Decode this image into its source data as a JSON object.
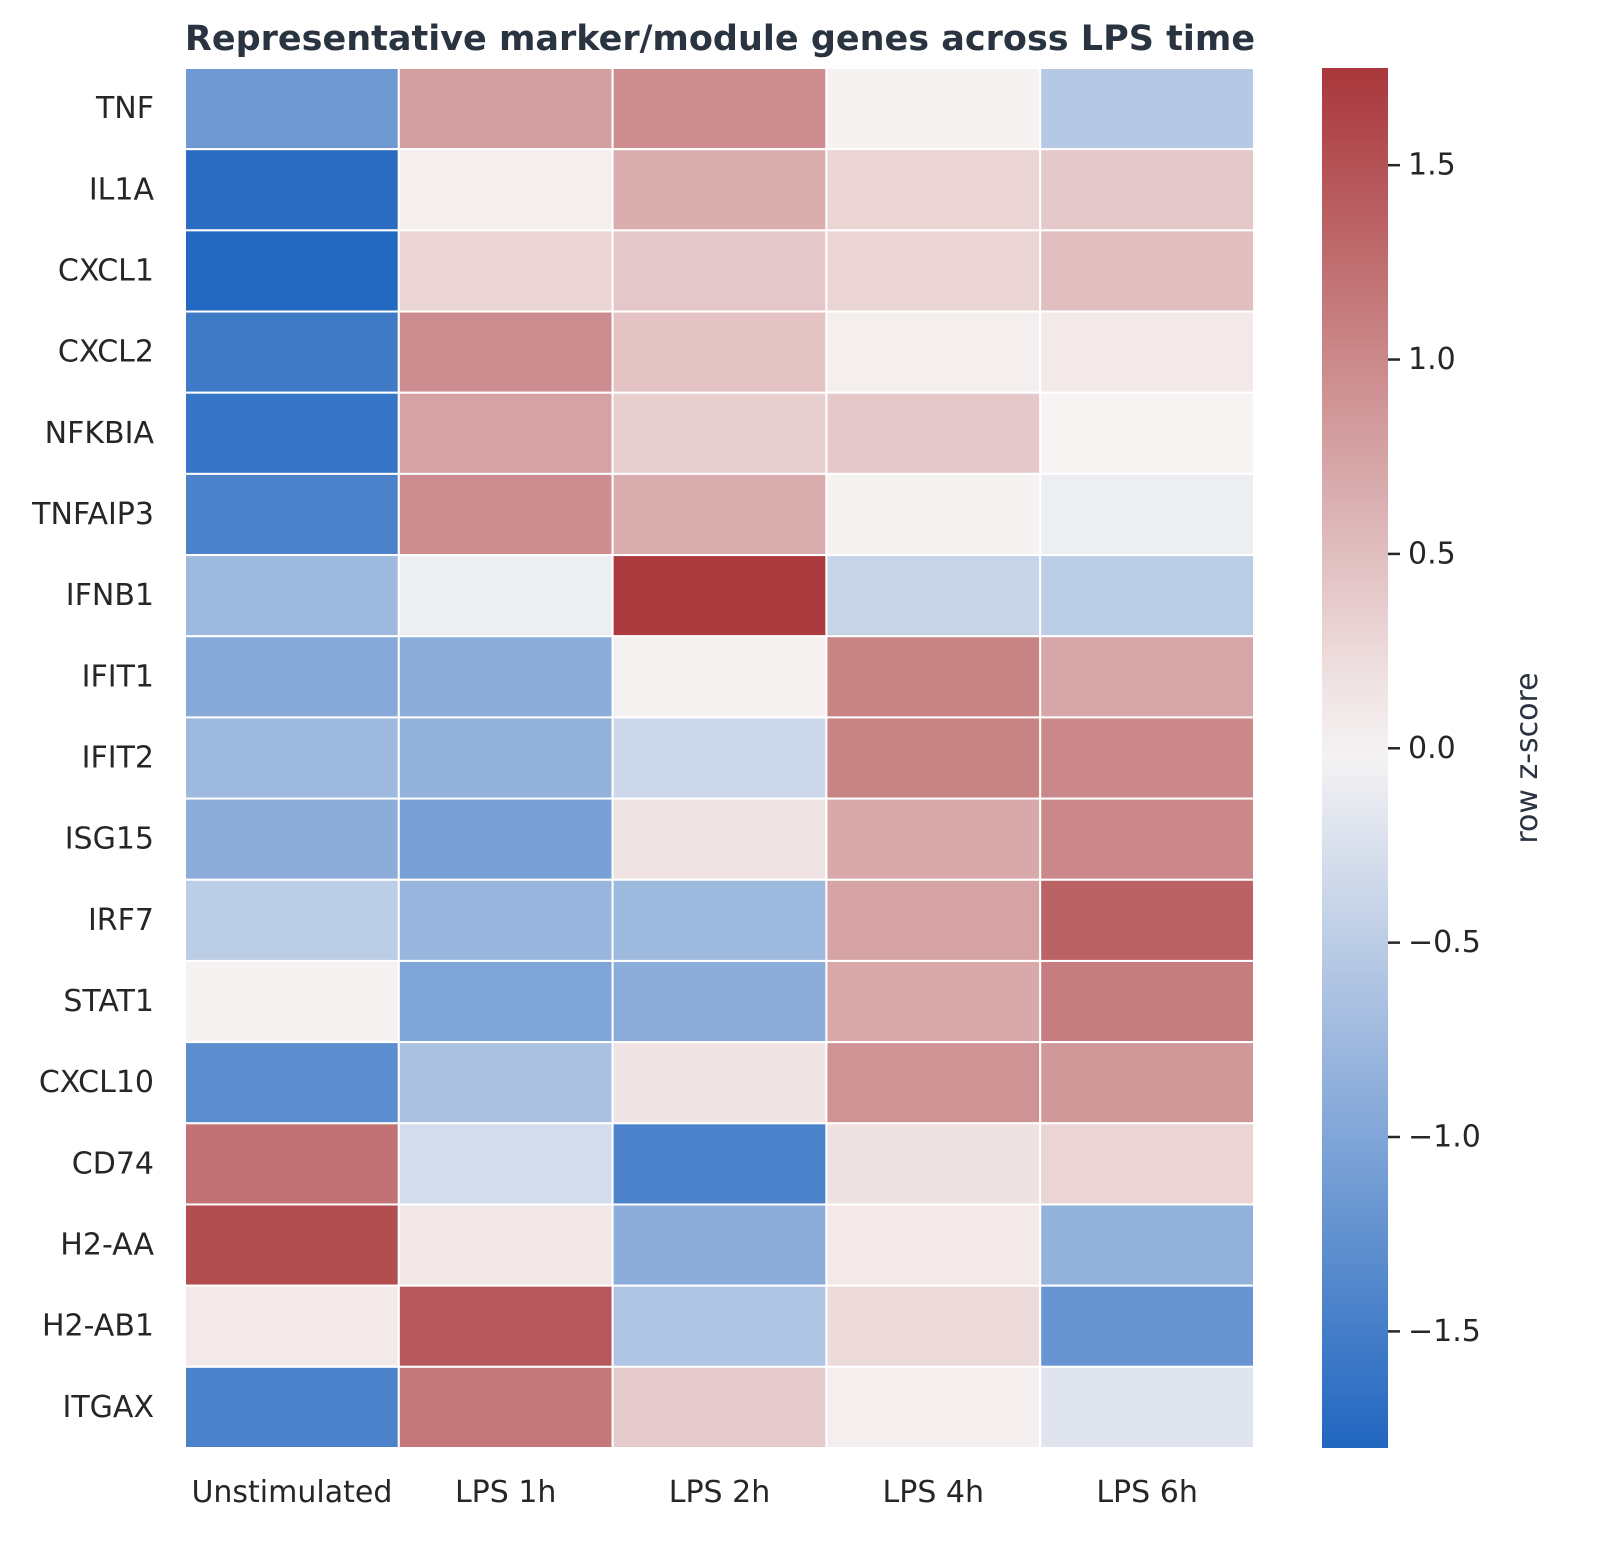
{
  "chart_data": {
    "type": "heatmap",
    "title": "Representative marker/module genes across LPS time",
    "columns": [
      "Unstimulated",
      "LPS 1h",
      "LPS 2h",
      "LPS 4h",
      "LPS 6h"
    ],
    "rows": [
      "TNF",
      "IL1A",
      "CXCL1",
      "CXCL2",
      "NFKBIA",
      "TNFAIP3",
      "IFNB1",
      "IFIT1",
      "IFIT2",
      "ISG15",
      "IRF7",
      "STAT1",
      "CXCL10",
      "CD74",
      "H2-AA",
      "H2-AB1",
      "ITGAX"
    ],
    "values": [
      [
        -1.15,
        0.8,
        0.95,
        0.02,
        -0.55
      ],
      [
        -1.72,
        0.06,
        0.65,
        0.3,
        0.4
      ],
      [
        -1.78,
        0.3,
        0.42,
        0.3,
        0.5
      ],
      [
        -1.55,
        0.95,
        0.45,
        0.06,
        0.1
      ],
      [
        -1.62,
        0.75,
        0.35,
        0.4,
        0.01
      ],
      [
        -1.45,
        0.95,
        0.65,
        0.02,
        -0.08
      ],
      [
        -0.75,
        -0.08,
        1.72,
        -0.4,
        -0.5
      ],
      [
        -0.95,
        -0.9,
        0.03,
        1.05,
        0.72
      ],
      [
        -0.75,
        -0.85,
        -0.35,
        1.05,
        1.0
      ],
      [
        -0.9,
        -1.05,
        0.16,
        0.7,
        1.0
      ],
      [
        -0.5,
        -0.8,
        -0.75,
        0.75,
        1.35
      ],
      [
        0.02,
        -1.0,
        -0.9,
        0.7,
        1.1
      ],
      [
        -1.3,
        -0.65,
        0.15,
        0.9,
        0.85
      ],
      [
        1.2,
        -0.3,
        -1.45,
        0.17,
        0.3
      ],
      [
        1.55,
        0.12,
        -0.9,
        0.1,
        -0.85
      ],
      [
        0.1,
        1.45,
        -0.6,
        0.25,
        -1.2
      ],
      [
        -1.45,
        1.15,
        0.38,
        0.06,
        -0.2
      ]
    ],
    "colorbar": {
      "label": "row z-score",
      "min": -1.8,
      "max": 1.75,
      "ticks": [
        1.5,
        1.0,
        0.5,
        0.0,
        -0.5,
        -1.0,
        -1.5
      ],
      "tick_labels": [
        "1.5",
        "1.0",
        "0.5",
        "0.0",
        "−0.5",
        "−1.0",
        "−1.5"
      ]
    },
    "colormap": {
      "name": "vlag",
      "stops": [
        "#2166c0",
        "#f7f4f4",
        "#a9373b"
      ]
    }
  }
}
